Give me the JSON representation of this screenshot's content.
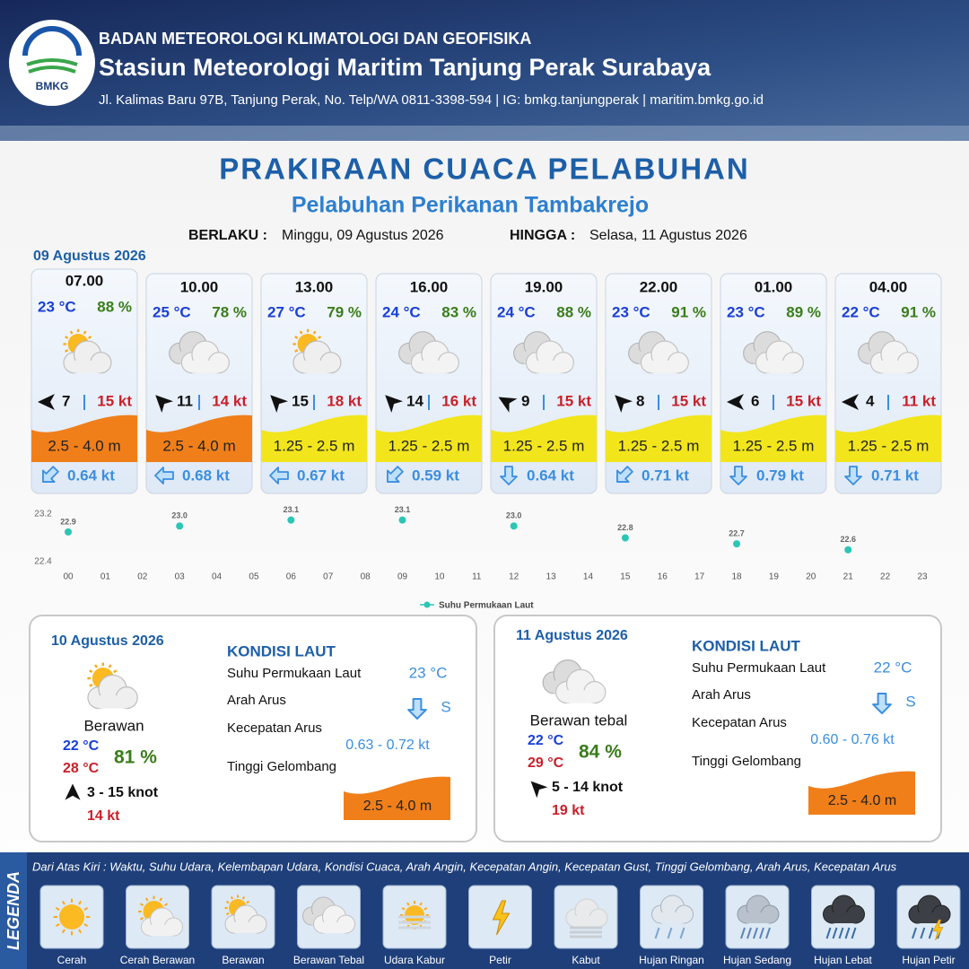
{
  "header": {
    "logo": "BMKG",
    "org": "BADAN METEOROLOGI KLIMATOLOGI DAN GEOFISIKA",
    "station": "Stasiun Meteorologi Maritim Tanjung Perak Surabaya",
    "address": "Jl. Kalimas Baru 97B, Tanjung Perak, No. Telp/WA 0811-3398-594 | IG: bmkg.tanjungperak | maritim.bmkg.go.id"
  },
  "title": "PRAKIRAAN CUACA PELABUHAN",
  "subtitle": "Pelabuhan Perikanan Tambakrejo",
  "validity": {
    "from_label": "BERLAKU :",
    "from": "Minggu, 09 Agustus 2026",
    "to_label": "HINGGA :",
    "to": "Selasa, 11 Agustus 2026"
  },
  "today": {
    "date": "09 Agustus 2026",
    "hours": [
      {
        "time": "07.00",
        "temp": "23 °C",
        "humidity": "88 %",
        "icon": 2,
        "wind_dir": 180,
        "wind": "7",
        "gust": "15 kt",
        "wave": "2.5 - 4.0 m",
        "wave_color": "#f07f1a",
        "current_dir": 135,
        "current": "0.64 kt"
      },
      {
        "time": "10.00",
        "temp": "25 °C",
        "humidity": "78 %",
        "icon": 3,
        "wind_dir": 225,
        "wind": "11",
        "gust": "14 kt",
        "wave": "2.5 - 4.0 m",
        "wave_color": "#f07f1a",
        "current_dir": 180,
        "current": "0.68 kt"
      },
      {
        "time": "13.00",
        "temp": "27 °C",
        "humidity": "79 %",
        "icon": 2,
        "wind_dir": 225,
        "wind": "15",
        "gust": "18 kt",
        "wave": "1.25 - 2.5 m",
        "wave_color": "#f2e51c",
        "current_dir": 180,
        "current": "0.67 kt"
      },
      {
        "time": "16.00",
        "temp": "24 °C",
        "humidity": "83 %",
        "icon": 3,
        "wind_dir": 225,
        "wind": "14",
        "gust": "16 kt",
        "wave": "1.25 - 2.5 m",
        "wave_color": "#f2e51c",
        "current_dir": 135,
        "current": "0.59 kt"
      },
      {
        "time": "19.00",
        "temp": "24 °C",
        "humidity": "88 %",
        "icon": 3,
        "wind_dir": 210,
        "wind": "9",
        "gust": "15 kt",
        "wave": "1.25 - 2.5 m",
        "wave_color": "#f2e51c",
        "current_dir": 90,
        "current": "0.64 kt"
      },
      {
        "time": "22.00",
        "temp": "23 °C",
        "humidity": "91 %",
        "icon": 3,
        "wind_dir": 225,
        "wind": "8",
        "gust": "15 kt",
        "wave": "1.25 - 2.5 m",
        "wave_color": "#f2e51c",
        "current_dir": 135,
        "current": "0.71 kt"
      },
      {
        "time": "01.00",
        "temp": "23 °C",
        "humidity": "89 %",
        "icon": 3,
        "wind_dir": 180,
        "wind": "6",
        "gust": "15 kt",
        "wave": "1.25 - 2.5 m",
        "wave_color": "#f2e51c",
        "current_dir": 90,
        "current": "0.79 kt"
      },
      {
        "time": "04.00",
        "temp": "22 °C",
        "humidity": "91 %",
        "icon": 3,
        "wind_dir": 180,
        "wind": "4",
        "gust": "11 kt",
        "wave": "1.25 - 2.5 m",
        "wave_color": "#f2e51c",
        "current_dir": 90,
        "current": "0.71 kt"
      }
    ]
  },
  "chart_data": {
    "type": "line",
    "categories": [
      "00",
      "01",
      "02",
      "03",
      "04",
      "05",
      "06",
      "07",
      "08",
      "09",
      "10",
      "11",
      "12",
      "13",
      "14",
      "15",
      "16",
      "17",
      "18",
      "19",
      "20",
      "21",
      "22",
      "23"
    ],
    "series": [
      {
        "name": "Suhu Permukaan Laut",
        "color": "#2cc6b4",
        "values": [
          22.9,
          null,
          null,
          23.0,
          null,
          null,
          23.1,
          null,
          null,
          23.1,
          null,
          null,
          23.0,
          null,
          null,
          22.8,
          null,
          null,
          22.7,
          null,
          null,
          22.6,
          null,
          null
        ],
        "value_labels": [
          "22.9",
          null,
          null,
          "23.0",
          null,
          null,
          "23.1",
          null,
          null,
          "23.1",
          null,
          null,
          "23.0",
          null,
          null,
          "22.8",
          null,
          null,
          "22.7",
          null,
          null,
          "22.6",
          null,
          null
        ]
      }
    ],
    "ylim": [
      22.4,
      23.2
    ],
    "yticks": [
      22.4,
      23.2
    ],
    "grid": false,
    "markers_only": true
  },
  "days": [
    {
      "date": "10 Agustus 2026",
      "icon": 2,
      "condition": "Berawan",
      "tmin": "22 °C",
      "tmax": "28 °C",
      "humidity": "81 %",
      "wind_dir": 270,
      "wind": "3  - 15 knot",
      "gust": "14 kt",
      "sea_title": "KONDISI LAUT",
      "sst_label": "Suhu Permukaan Laut",
      "sst": "23 °C",
      "current_dir_label": "Arah Arus",
      "current_arrow": 90,
      "current_dir": "S",
      "speed_label": "Kecepatan Arus",
      "speed": "0.63  - 0.72 kt",
      "wave_label": "Tinggi Gelombang",
      "wave": "2.5 - 4.0 m",
      "wave_color": "#f07f1a"
    },
    {
      "date": "11 Agustus 2026",
      "icon": 3,
      "condition": "Berawan tebal",
      "tmin": "22 °C",
      "tmax": "29 °C",
      "humidity": "84 %",
      "wind_dir": 225,
      "wind": "5  - 14 knot",
      "gust": "19 kt",
      "sea_title": "KONDISI LAUT",
      "sst_label": "Suhu Permukaan Laut",
      "sst": "22 °C",
      "current_dir_label": "Arah Arus",
      "current_arrow": 90,
      "current_dir": "S",
      "speed_label": "Kecepatan Arus",
      "speed": "0.60  - 0.76 kt",
      "wave_label": "Tinggi Gelombang",
      "wave": "2.5 - 4.0 m",
      "wave_color": "#f07f1a"
    }
  ],
  "legend": {
    "title": "LEGENDA",
    "description": "Dari Atas Kiri : Waktu, Suhu Udara, Kelembapan Udara, Kondisi Cuaca, Arah Angin, Kecepatan Angin, Kecepatan Gust, Tinggi Gelombang, Arah Arus, Kecepatan Arus",
    "items": [
      "Cerah",
      "Cerah Berawan",
      "Berawan",
      "Berawan Tebal",
      "Udara Kabur",
      "Petir",
      "Kabut",
      "Hujan Ringan",
      "Hujan Sedang",
      "Hujan Lebat",
      "Hujan Petir"
    ]
  }
}
